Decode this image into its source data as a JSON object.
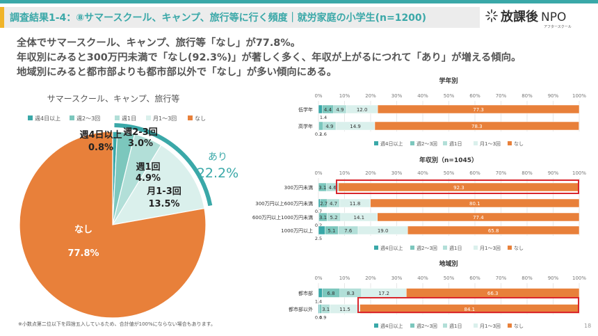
{
  "header": {
    "title": "調査結果1-4：⑧サマースクール、キャンプ、旅行等に行く頻度｜就労家庭の小学生(n=1200)"
  },
  "logo": {
    "main": "放課後",
    "npo": "NPO",
    "sub": "アフタースクール"
  },
  "summary": {
    "line1": "全体でサマースクール、キャンプ、旅行等「なし」が77.8%。",
    "line2": "年収別にみると300万円未満で「なし(92.3%)」が著しく多く、年収が上がるにつれて「あり」が増える傾向。",
    "line3": "地域別にみると都市部よりも都市部以外で「なし」が多い傾向にある。"
  },
  "colors": {
    "c1": "#3aa8a8",
    "c2": "#7cc7bd",
    "c3": "#b2dfd8",
    "c4": "#daf0ec",
    "c5": "#e8803a",
    "accent": "#3aa8a8",
    "highlight": "#d9262c"
  },
  "footnote": "※小数点第二位以下を四捨五入しているため、合計値が100%にならない場合もあります。",
  "page_number": "18",
  "pie": {
    "title": "サマースクール、キャンプ、旅行等",
    "aggregate_label": "あり",
    "aggregate_value": "22.2%"
  },
  "chart_data": [
    {
      "type": "pie",
      "title": "サマースクール、キャンプ、旅行等",
      "categories": [
        "週4日以上",
        "週2-3回",
        "週1回",
        "月1-3回",
        "なし"
      ],
      "values": [
        0.8,
        3.0,
        4.9,
        13.5,
        77.8
      ],
      "legend": [
        "週4日以上",
        "週2〜3回",
        "週1日",
        "月1〜3回",
        "なし"
      ]
    },
    {
      "type": "bar",
      "stacked": true,
      "orientation": "horizontal",
      "title": "学年別",
      "categories": [
        "低学年",
        "高学年"
      ],
      "series": [
        {
          "name": "週4日以上",
          "values": [
            1.4,
            0.2
          ]
        },
        {
          "name": "週2〜3回",
          "values": [
            4.4,
            1.6
          ]
        },
        {
          "name": "週1日",
          "values": [
            4.9,
            4.9
          ]
        },
        {
          "name": "月1〜3回",
          "values": [
            12.0,
            14.9
          ]
        },
        {
          "name": "なし",
          "values": [
            77.3,
            78.3
          ]
        }
      ],
      "xlim": [
        0,
        100
      ],
      "ticks": [
        "0%",
        "10%",
        "20%",
        "30%",
        "40%",
        "50%",
        "60%",
        "70%",
        "80%",
        "90%",
        "100%"
      ]
    },
    {
      "type": "bar",
      "stacked": true,
      "orientation": "horizontal",
      "title": "年収別（n=1045）",
      "categories": [
        "300万円未満",
        "300万円以上600万円未満",
        "600万円以上1000万円未満",
        "1000万円以上"
      ],
      "series": [
        {
          "name": "週4日以上",
          "values": [
            0.0,
            0.7,
            0.2,
            2.5
          ]
        },
        {
          "name": "週2〜3回",
          "values": [
            3.1,
            2.7,
            3.1,
            5.1
          ]
        },
        {
          "name": "週1日",
          "values": [
            4.6,
            4.7,
            5.2,
            7.6
          ]
        },
        {
          "name": "月1〜3回",
          "values": [
            0.0,
            11.8,
            14.1,
            19.0
          ]
        },
        {
          "name": "なし",
          "values": [
            92.3,
            80.1,
            77.4,
            65.8
          ]
        }
      ],
      "highlight_category": "300万円未満",
      "xlim": [
        0,
        100
      ],
      "ticks": [
        "0%",
        "10%",
        "20%",
        "30%",
        "40%",
        "50%",
        "60%",
        "70%",
        "80%",
        "90%",
        "100%"
      ]
    },
    {
      "type": "bar",
      "stacked": true,
      "orientation": "horizontal",
      "title": "地域別",
      "categories": [
        "都市部",
        "都市部以外"
      ],
      "series": [
        {
          "name": "週4日以上",
          "values": [
            1.4,
            0.4
          ]
        },
        {
          "name": "週2〜3回",
          "values": [
            6.8,
            0.9
          ]
        },
        {
          "name": "週1日",
          "values": [
            8.3,
            3.1
          ]
        },
        {
          "name": "月1〜3回",
          "values": [
            17.2,
            11.5
          ]
        },
        {
          "name": "なし",
          "values": [
            66.3,
            84.1
          ]
        }
      ],
      "highlight_category": "都市部以外",
      "xlim": [
        0,
        100
      ],
      "ticks": [
        "0%",
        "10%",
        "20%",
        "30%",
        "40%",
        "50%",
        "60%",
        "70%",
        "80%",
        "90%",
        "100%"
      ]
    }
  ]
}
